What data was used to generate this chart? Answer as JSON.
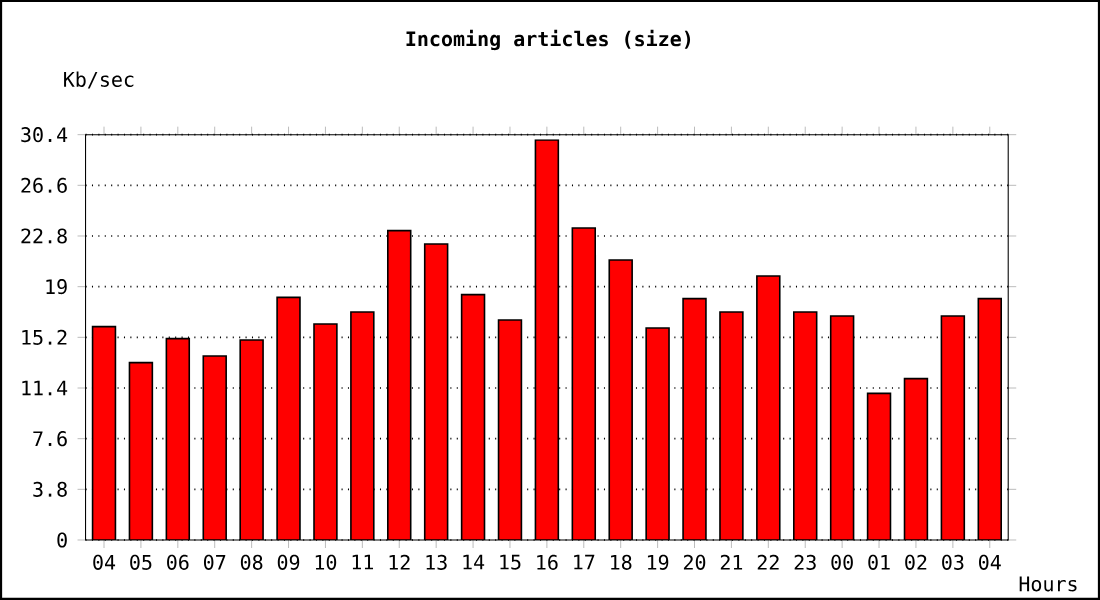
{
  "chart_data": {
    "type": "bar",
    "title": "Incoming articles (size)",
    "ylabel": "Kb/sec",
    "xlabel": "Hours",
    "categories": [
      "04",
      "05",
      "06",
      "07",
      "08",
      "09",
      "10",
      "11",
      "12",
      "13",
      "14",
      "15",
      "16",
      "17",
      "18",
      "19",
      "20",
      "21",
      "22",
      "23",
      "00",
      "01",
      "02",
      "03",
      "04"
    ],
    "values": [
      16.0,
      13.3,
      15.1,
      13.8,
      15.0,
      18.2,
      16.2,
      17.1,
      23.2,
      22.2,
      18.4,
      16.5,
      30.0,
      23.4,
      21.0,
      15.9,
      18.1,
      17.1,
      19.8,
      17.1,
      16.8,
      11.0,
      12.1,
      16.8,
      18.1
    ],
    "color": "#ff0000",
    "ylim": [
      0,
      30.4
    ],
    "yticks": [
      0,
      3.8,
      7.6,
      11.4,
      15.2,
      19,
      22.8,
      26.6,
      30.4
    ],
    "grid": "y"
  }
}
